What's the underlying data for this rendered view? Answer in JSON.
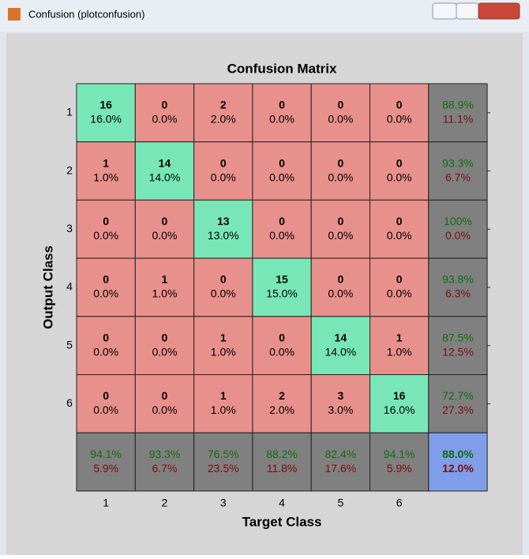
{
  "window": {
    "title": "Confusion (plotconfusion)"
  },
  "chart": {
    "title": "Confusion Matrix",
    "x_label": "Target Class",
    "y_label": "Output Class",
    "x_ticks": [
      "1",
      "2",
      "3",
      "4",
      "5",
      "6"
    ],
    "y_ticks": [
      "1",
      "2",
      "3",
      "4",
      "5",
      "6"
    ],
    "rows": [
      {
        "cells": [
          {
            "count": 16,
            "percent": "16.0%"
          },
          {
            "count": 0,
            "percent": "0.0%"
          },
          {
            "count": 2,
            "percent": "2.0%"
          },
          {
            "count": 0,
            "percent": "0.0%"
          },
          {
            "count": 0,
            "percent": "0.0%"
          },
          {
            "count": 0,
            "percent": "0.0%"
          }
        ],
        "summary": {
          "correct": "88.9%",
          "wrong": "11.1%"
        }
      },
      {
        "cells": [
          {
            "count": 1,
            "percent": "1.0%"
          },
          {
            "count": 14,
            "percent": "14.0%"
          },
          {
            "count": 0,
            "percent": "0.0%"
          },
          {
            "count": 0,
            "percent": "0.0%"
          },
          {
            "count": 0,
            "percent": "0.0%"
          },
          {
            "count": 0,
            "percent": "0.0%"
          }
        ],
        "summary": {
          "correct": "93.3%",
          "wrong": "6.7%"
        }
      },
      {
        "cells": [
          {
            "count": 0,
            "percent": "0.0%"
          },
          {
            "count": 0,
            "percent": "0.0%"
          },
          {
            "count": 13,
            "percent": "13.0%"
          },
          {
            "count": 0,
            "percent": "0.0%"
          },
          {
            "count": 0,
            "percent": "0.0%"
          },
          {
            "count": 0,
            "percent": "0.0%"
          }
        ],
        "summary": {
          "correct": "100%",
          "wrong": "0.0%"
        }
      },
      {
        "cells": [
          {
            "count": 0,
            "percent": "0.0%"
          },
          {
            "count": 1,
            "percent": "1.0%"
          },
          {
            "count": 0,
            "percent": "0.0%"
          },
          {
            "count": 15,
            "percent": "15.0%"
          },
          {
            "count": 0,
            "percent": "0.0%"
          },
          {
            "count": 0,
            "percent": "0.0%"
          }
        ],
        "summary": {
          "correct": "93.8%",
          "wrong": "6.3%"
        }
      },
      {
        "cells": [
          {
            "count": 0,
            "percent": "0.0%"
          },
          {
            "count": 0,
            "percent": "0.0%"
          },
          {
            "count": 1,
            "percent": "1.0%"
          },
          {
            "count": 0,
            "percent": "0.0%"
          },
          {
            "count": 14,
            "percent": "14.0%"
          },
          {
            "count": 1,
            "percent": "1.0%"
          }
        ],
        "summary": {
          "correct": "87.5%",
          "wrong": "12.5%"
        }
      },
      {
        "cells": [
          {
            "count": 0,
            "percent": "0.0%"
          },
          {
            "count": 0,
            "percent": "0.0%"
          },
          {
            "count": 1,
            "percent": "1.0%"
          },
          {
            "count": 2,
            "percent": "2.0%"
          },
          {
            "count": 3,
            "percent": "3.0%"
          },
          {
            "count": 16,
            "percent": "16.0%"
          }
        ],
        "summary": {
          "correct": "72.7%",
          "wrong": "27.3%"
        }
      }
    ],
    "column_summary": [
      {
        "correct": "94.1%",
        "wrong": "5.9%"
      },
      {
        "correct": "93.3%",
        "wrong": "6.7%"
      },
      {
        "correct": "76.5%",
        "wrong": "23.5%"
      },
      {
        "correct": "88.2%",
        "wrong": "11.8%"
      },
      {
        "correct": "82.4%",
        "wrong": "17.6%"
      },
      {
        "correct": "94.1%",
        "wrong": "5.9%"
      }
    ],
    "overall": {
      "correct": "88.0%",
      "wrong": "12.0%"
    }
  }
}
